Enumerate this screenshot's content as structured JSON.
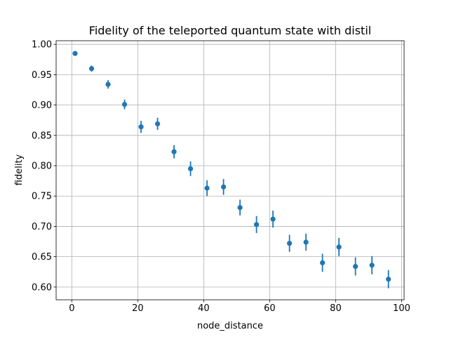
{
  "chart_data": {
    "type": "scatter",
    "title": "Fidelity of the teleported quantum state with distil",
    "xlabel": "node_distance",
    "ylabel": "fidelity",
    "xlim": [
      -4.75,
      100.75
    ],
    "ylim": [
      0.579,
      1.006
    ],
    "grid": true,
    "marker_color": "#1f77b4",
    "x_ticks": [
      0,
      20,
      40,
      60,
      80,
      100
    ],
    "y_ticks": [
      0.6,
      0.65,
      0.7,
      0.75,
      0.8,
      0.85,
      0.9,
      0.95,
      1.0
    ],
    "x_tick_labels": [
      "0",
      "20",
      "40",
      "60",
      "80",
      "100"
    ],
    "y_tick_labels": [
      "0.60",
      "0.65",
      "0.70",
      "0.75",
      "0.80",
      "0.85",
      "0.90",
      "0.95",
      "1.00"
    ],
    "series": [
      {
        "x": [
          1,
          6,
          11,
          16,
          21,
          26,
          31,
          36,
          41,
          46,
          51,
          56,
          61,
          66,
          71,
          76,
          81,
          86,
          91,
          96
        ],
        "y": [
          0.985,
          0.96,
          0.934,
          0.901,
          0.864,
          0.869,
          0.823,
          0.795,
          0.763,
          0.765,
          0.731,
          0.703,
          0.712,
          0.672,
          0.674,
          0.64,
          0.666,
          0.634,
          0.636,
          0.613
        ],
        "yerr": [
          0.001,
          0.005,
          0.007,
          0.008,
          0.01,
          0.01,
          0.011,
          0.012,
          0.013,
          0.013,
          0.013,
          0.014,
          0.014,
          0.014,
          0.014,
          0.015,
          0.015,
          0.015,
          0.015,
          0.015
        ]
      }
    ]
  }
}
